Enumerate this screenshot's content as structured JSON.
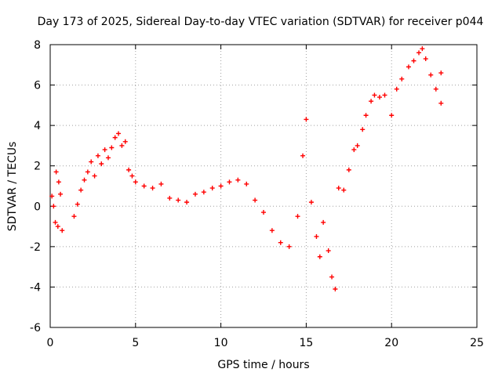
{
  "chart_data": {
    "type": "scatter",
    "title": "Day 173 of 2025, Sidereal Day-to-day VTEC variation (SDTVAR) for receiver p044",
    "xlabel": "GPS time / hours",
    "ylabel": "SDTVAR / TECUs",
    "xlim": [
      0,
      25
    ],
    "ylim": [
      -6,
      8
    ],
    "xticks": [
      0,
      5,
      10,
      15,
      20,
      25
    ],
    "yticks": [
      -6,
      -4,
      -2,
      0,
      2,
      4,
      6,
      8
    ],
    "grid": true,
    "marker": "+",
    "color": "#ff0000",
    "series": [
      {
        "name": "p044",
        "points": [
          [
            0.1,
            0.5
          ],
          [
            0.2,
            0.0
          ],
          [
            0.3,
            -0.8
          ],
          [
            0.35,
            1.7
          ],
          [
            0.45,
            -1.0
          ],
          [
            0.5,
            1.2
          ],
          [
            0.6,
            0.6
          ],
          [
            0.7,
            -1.2
          ],
          [
            1.4,
            -0.5
          ],
          [
            1.6,
            0.1
          ],
          [
            1.8,
            0.8
          ],
          [
            2.0,
            1.3
          ],
          [
            2.2,
            1.7
          ],
          [
            2.4,
            2.2
          ],
          [
            2.6,
            1.5
          ],
          [
            2.8,
            2.5
          ],
          [
            3.0,
            2.1
          ],
          [
            3.2,
            2.8
          ],
          [
            3.4,
            2.4
          ],
          [
            3.6,
            2.9
          ],
          [
            3.8,
            3.4
          ],
          [
            4.0,
            3.6
          ],
          [
            4.2,
            3.0
          ],
          [
            4.4,
            3.2
          ],
          [
            4.6,
            1.8
          ],
          [
            4.8,
            1.5
          ],
          [
            5.0,
            1.2
          ],
          [
            5.5,
            1.0
          ],
          [
            6.0,
            0.9
          ],
          [
            6.5,
            1.1
          ],
          [
            7.0,
            0.4
          ],
          [
            7.5,
            0.3
          ],
          [
            8.0,
            0.2
          ],
          [
            8.5,
            0.6
          ],
          [
            9.0,
            0.7
          ],
          [
            9.5,
            0.9
          ],
          [
            10.0,
            1.0
          ],
          [
            10.5,
            1.2
          ],
          [
            11.0,
            1.3
          ],
          [
            11.5,
            1.1
          ],
          [
            12.0,
            0.3
          ],
          [
            12.5,
            -0.3
          ],
          [
            13.0,
            -1.2
          ],
          [
            13.5,
            -1.8
          ],
          [
            14.0,
            -2.0
          ],
          [
            14.5,
            -0.5
          ],
          [
            14.8,
            2.5
          ],
          [
            15.0,
            4.3
          ],
          [
            15.3,
            0.2
          ],
          [
            15.6,
            -1.5
          ],
          [
            15.8,
            -2.5
          ],
          [
            16.0,
            -0.8
          ],
          [
            16.3,
            -2.2
          ],
          [
            16.5,
            -3.5
          ],
          [
            16.7,
            -4.1
          ],
          [
            16.9,
            0.9
          ],
          [
            17.2,
            0.8
          ],
          [
            17.5,
            1.8
          ],
          [
            17.8,
            2.8
          ],
          [
            18.0,
            3.0
          ],
          [
            18.3,
            3.8
          ],
          [
            18.5,
            4.5
          ],
          [
            18.8,
            5.2
          ],
          [
            19.0,
            5.5
          ],
          [
            19.3,
            5.4
          ],
          [
            19.6,
            5.5
          ],
          [
            20.0,
            4.5
          ],
          [
            20.3,
            5.8
          ],
          [
            20.6,
            6.3
          ],
          [
            21.0,
            6.9
          ],
          [
            21.3,
            7.2
          ],
          [
            21.6,
            7.6
          ],
          [
            21.8,
            7.8
          ],
          [
            22.0,
            7.3
          ],
          [
            22.3,
            6.5
          ],
          [
            22.6,
            5.8
          ],
          [
            22.9,
            5.1
          ],
          [
            22.9,
            6.6
          ]
        ]
      }
    ]
  }
}
